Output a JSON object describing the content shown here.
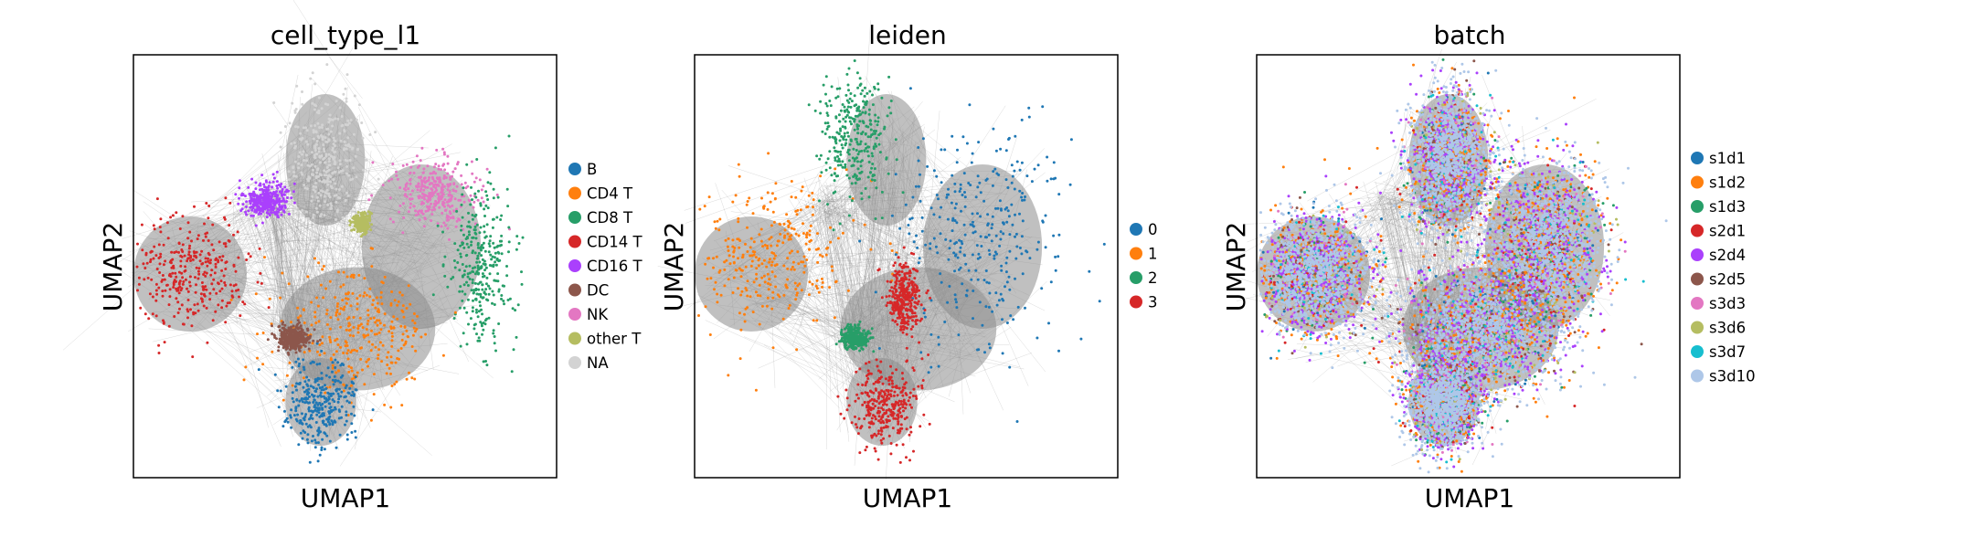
{
  "chart_data": [
    {
      "type": "scatter",
      "title": "cell_type_l1",
      "xlabel": "UMAP1",
      "ylabel": "UMAP2",
      "legend_position": "right",
      "categories": [
        {
          "label": "B",
          "color": "#1f77b4"
        },
        {
          "label": "CD4 T",
          "color": "#ff7f0e"
        },
        {
          "label": "CD8 T",
          "color": "#279e68"
        },
        {
          "label": "CD14 T",
          "color": "#d62728"
        },
        {
          "label": "CD16 T",
          "color": "#aa40fc"
        },
        {
          "label": "DC",
          "color": "#8c564b"
        },
        {
          "label": "NK",
          "color": "#e377c2"
        },
        {
          "label": "other T",
          "color": "#b5bd61"
        },
        {
          "label": "NA",
          "color": "#d3d3d3"
        }
      ]
    },
    {
      "type": "scatter",
      "title": "leiden",
      "xlabel": "UMAP1",
      "ylabel": "UMAP2",
      "legend_position": "right",
      "categories": [
        {
          "label": "0",
          "color": "#1f77b4"
        },
        {
          "label": "1",
          "color": "#ff7f0e"
        },
        {
          "label": "2",
          "color": "#279e68"
        },
        {
          "label": "3",
          "color": "#d62728"
        }
      ]
    },
    {
      "type": "scatter",
      "title": "batch",
      "xlabel": "UMAP1",
      "ylabel": "UMAP2",
      "legend_position": "right",
      "categories": [
        {
          "label": "s1d1",
          "color": "#1f77b4"
        },
        {
          "label": "s1d2",
          "color": "#ff7f0e"
        },
        {
          "label": "s1d3",
          "color": "#279e68"
        },
        {
          "label": "s2d1",
          "color": "#d62728"
        },
        {
          "label": "s2d4",
          "color": "#aa40fc"
        },
        {
          "label": "s2d5",
          "color": "#8c564b"
        },
        {
          "label": "s3d3",
          "color": "#e377c2"
        },
        {
          "label": "s3d6",
          "color": "#b5bd61"
        },
        {
          "label": "s3d7",
          "color": "#17becf"
        },
        {
          "label": "s3d10",
          "color": "#aec7e8"
        }
      ]
    }
  ]
}
